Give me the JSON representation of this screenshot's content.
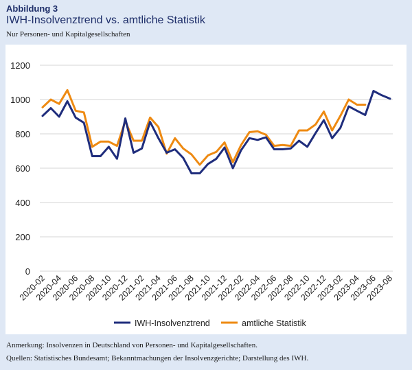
{
  "figure": {
    "label": "Abbildung 3",
    "title": "IWH-Insolvenztrend vs. amtliche Statistik",
    "subtitle": "Nur Personen- und Kapitalgesellschaften"
  },
  "notes": {
    "remark": "Anmerkung: Insolvenzen in Deutschland von Personen- und Kapitalgesellschaften.",
    "sources": "Quellen: Statistisches Bundesamt; Bekanntmachungen der Insolvenzgerichte; Darstellung des IWH."
  },
  "colors": {
    "background": "#dfe8f5",
    "panel": "#ffffff",
    "iwh": "#1f2d7c",
    "amtlich": "#ee8a12",
    "grid": "#d4d4d4",
    "title": "#1f2f6a"
  },
  "chart_data": {
    "type": "line",
    "ylim": [
      0,
      1200
    ],
    "yticks": [
      0,
      200,
      400,
      600,
      800,
      1000,
      1200
    ],
    "grid": true,
    "legend_position": "bottom",
    "x": [
      "2020-02",
      "2020-03",
      "2020-04",
      "2020-05",
      "2020-06",
      "2020-07",
      "2020-08",
      "2020-09",
      "2020-10",
      "2020-11",
      "2020-12",
      "2021-01",
      "2021-02",
      "2021-03",
      "2021-04",
      "2021-05",
      "2021-06",
      "2021-07",
      "2021-08",
      "2021-09",
      "2021-10",
      "2021-11",
      "2021-12",
      "2022-01",
      "2022-02",
      "2022-03",
      "2022-04",
      "2022-05",
      "2022-06",
      "2022-07",
      "2022-08",
      "2022-09",
      "2022-10",
      "2022-11",
      "2022-12",
      "2023-01",
      "2023-02",
      "2023-03",
      "2023-04",
      "2023-05",
      "2023-06",
      "2023-07",
      "2023-08"
    ],
    "xtick_labels": [
      "2020-02",
      "2020-04",
      "2020-06",
      "2020-08",
      "2020-10",
      "2020-12",
      "2021-02",
      "2021-04",
      "2021-06",
      "2021-08",
      "2021-10",
      "2021-12",
      "2022-02",
      "2022-04",
      "2022-06",
      "2022-08",
      "2022-10",
      "2022-12",
      "2023-02",
      "2023-04",
      "2023-06",
      "2023-08"
    ],
    "series": [
      {
        "name": "IWH-Insolvenztrend",
        "color": "#1f2d7c",
        "values": [
          905,
          950,
          900,
          990,
          895,
          865,
          670,
          670,
          725,
          655,
          890,
          690,
          715,
          870,
          775,
          690,
          710,
          660,
          570,
          570,
          625,
          655,
          720,
          600,
          705,
          775,
          765,
          780,
          710,
          710,
          715,
          760,
          725,
          805,
          880,
          775,
          835,
          960,
          935,
          910,
          1050,
          1025,
          1005
        ]
      },
      {
        "name": "amtliche Statistik",
        "color": "#ee8a12",
        "values": [
          955,
          1000,
          975,
          1055,
          935,
          925,
          725,
          755,
          755,
          730,
          875,
          760,
          760,
          895,
          840,
          685,
          775,
          715,
          680,
          620,
          675,
          695,
          750,
          635,
          735,
          810,
          815,
          795,
          730,
          735,
          730,
          820,
          820,
          855,
          930,
          820,
          905,
          1000,
          970,
          970,
          null,
          null,
          null
        ]
      }
    ]
  }
}
